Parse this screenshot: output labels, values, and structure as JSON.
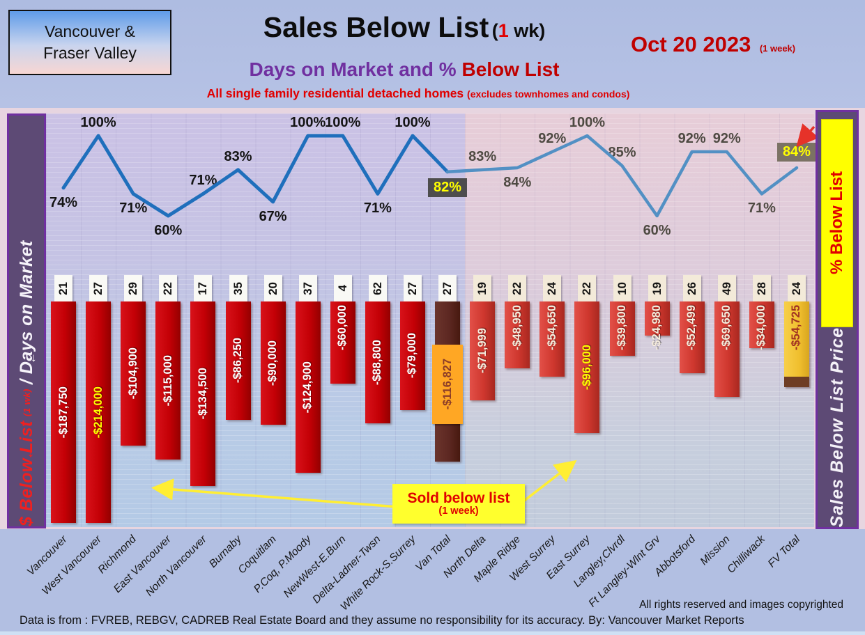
{
  "header": {
    "region_box": {
      "line1": "Vancouver &",
      "line2": "Fraser Valley"
    },
    "title": "Sales Below List",
    "title_wk_open": "(",
    "title_wk_num": "1",
    "title_wk_rest": " wk)",
    "date": "Oct 20  2023",
    "date_paren": "(1 week)",
    "subtitle_purple": "Days on Market and % ",
    "subtitle_red": "Below List",
    "tagline_main": "All single family residential detached homes ",
    "tagline_paren": "(excludes townhomes and condos)"
  },
  "axes": {
    "left_dollar": "$ Below List",
    "left_wk": "(1 wk)",
    "left_days": "/ Days on Market",
    "right_pct": "% Below List",
    "right_price": "Sales Below List Price"
  },
  "annotations": {
    "sold_line1": "Sold below list",
    "sold_line2": "(1 week)"
  },
  "footer": {
    "rights": "All rights reserved and  images copyrighted",
    "source": "Data is from : FVREB, REBGV, CADREB Real Estate Board and they assume no responsibility for its accuracy. By: Vancouver Market Reports"
  },
  "chart_data": {
    "type": "bar",
    "subtype": "combo: line (% below list) + downward bars ($ below list) + column labels (days on market)",
    "title": "Sales Below List (1 wk) — Oct 20 2023",
    "categories": [
      "Vancouver",
      "West Vancouver",
      "Richmond",
      "East Vancouver",
      "North Vancouver",
      "Burnaby",
      "Coquitlam",
      "P.Coq, P.Moody",
      "NewWest-E.Burn",
      "Delta-Ladner-Twsn",
      "White Rock-S.Surrey",
      "Van Total",
      "North Delta",
      "Maple Ridge",
      "West Surrey",
      "East Surrey",
      "Langley,Clvrdl",
      "Ft Langley-Wlnt Grv",
      "Abbotsford",
      "Mission",
      "Chilliwack",
      "FV Total"
    ],
    "series": [
      {
        "name": "% Below List",
        "type": "line",
        "values": [
          74,
          100,
          71,
          60,
          71,
          83,
          67,
          100,
          100,
          71,
          100,
          82,
          83,
          84,
          92,
          100,
          85,
          60,
          92,
          92,
          71,
          84
        ]
      },
      {
        "name": "Days on Market",
        "type": "label-row",
        "values": [
          21,
          27,
          29,
          22,
          17,
          35,
          20,
          37,
          4,
          62,
          27,
          27,
          19,
          22,
          24,
          22,
          10,
          19,
          26,
          49,
          28,
          24
        ]
      },
      {
        "name": "$ Below List",
        "type": "bar",
        "values": [
          -187750,
          -214000,
          -104900,
          -115000,
          -134500,
          -86250,
          -90000,
          -124900,
          -60000,
          -88800,
          -79000,
          -116827,
          -71999,
          -48950,
          -54650,
          -96000,
          -39800,
          -24980,
          -52499,
          -69650,
          -34000,
          -54725
        ],
        "labels": [
          "-$187,750",
          "-$214,000",
          "-$104,900",
          "-$115,000",
          "-$134,500",
          "-$86,250",
          "-$90,000",
          "-$124,900",
          "-$60,000",
          "-$88,800",
          "-$79,000",
          "-$116,827",
          "-$71,999",
          "-$48,950",
          "-$54,650",
          "-$96,000",
          "-$39,800",
          "-$24,980",
          "-$52,499",
          "-$69,650",
          "-$34,000",
          "-$54,725"
        ]
      }
    ],
    "label_pos": [
      "below",
      "above",
      "below",
      "below",
      "above",
      "above",
      "below",
      "above",
      "above",
      "below",
      "above",
      "box-below",
      "above",
      "below",
      "above",
      "above",
      "above",
      "below",
      "above",
      "above",
      "below",
      "box-above"
    ],
    "highlights": {
      "van_total_index": 11,
      "fv_total_index": 21,
      "yellow_text_indices": [
        1,
        15
      ]
    },
    "regions": {
      "van_count": 12,
      "fv_count": 10
    },
    "ylim_pct": [
      60,
      100
    ],
    "grid": true,
    "legend": "none"
  },
  "colors": {
    "bar_van": "#c40006",
    "bar_fv": "#cf372e",
    "bar_van_total": "#5d2822",
    "bar_van_total_label_bg": "#ffa724",
    "bar_fv_total": "#f0bf2e",
    "line_van": "#1f6fbc",
    "line_fv": "#5290c4",
    "highlight_box_van": "#4d4d4d",
    "highlight_box_fv": "#7b7264",
    "highlight_text": "#ffff00",
    "accent_red": "#c00000",
    "accent_purple": "#7030a0",
    "annotation_yellow": "#ffee33",
    "arrow_red": "#e63229"
  }
}
